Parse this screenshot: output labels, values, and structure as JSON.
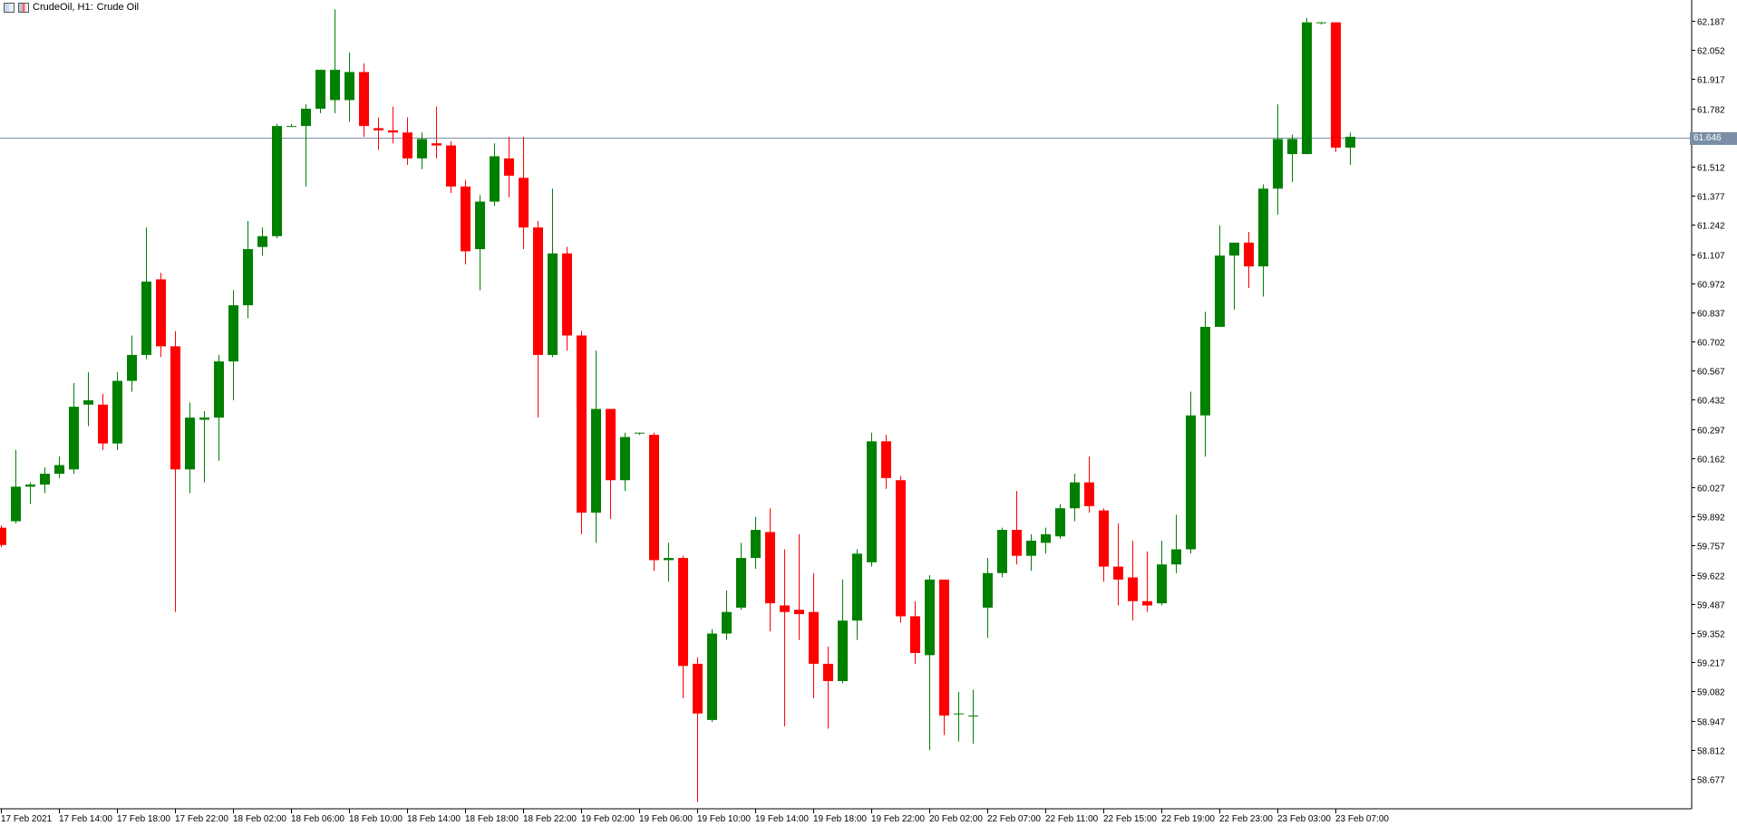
{
  "header": {
    "symbol_label": "CrudeOil, H1:",
    "description": "Crude Oil",
    "icons": [
      "chart-window-icon",
      "chart-type-icon"
    ]
  },
  "colors": {
    "bull": "#008000",
    "bear": "#ff0000",
    "bid_line": "#7a8fa6",
    "price_tag_bg": "#7a8fa6",
    "axis": "#000000"
  },
  "current_price": "61.646",
  "chart_data": {
    "type": "candlestick",
    "title": "",
    "xlabel": "",
    "ylabel": "",
    "ylim": [
      58.58,
      62.24
    ],
    "y_ticks": [
      "62.187",
      "62.052",
      "61.917",
      "61.782",
      "61.646",
      "61.512",
      "61.377",
      "61.242",
      "61.107",
      "60.972",
      "60.837",
      "60.702",
      "60.567",
      "60.432",
      "60.297",
      "60.162",
      "60.027",
      "59.892",
      "59.757",
      "59.622",
      "59.487",
      "59.352",
      "59.217",
      "59.082",
      "58.947",
      "58.812",
      "58.677"
    ],
    "x_tick_labels": [
      "17 Feb 2021",
      "17 Feb 14:00",
      "17 Feb 18:00",
      "17 Feb 22:00",
      "18 Feb 02:00",
      "18 Feb 06:00",
      "18 Feb 10:00",
      "18 Feb 14:00",
      "18 Feb 18:00",
      "18 Feb 22:00",
      "19 Feb 02:00",
      "19 Feb 06:00",
      "19 Feb 10:00",
      "19 Feb 14:00",
      "19 Feb 18:00",
      "19 Feb 22:00",
      "20 Feb 02:00",
      "22 Feb 07:00",
      "22 Feb 11:00",
      "22 Feb 15:00",
      "22 Feb 19:00",
      "22 Feb 23:00",
      "23 Feb 03:00",
      "23 Feb 07:00"
    ],
    "candles": [
      {
        "o": 59.84,
        "h": 59.85,
        "l": 59.75,
        "c": 59.76
      },
      {
        "o": 59.87,
        "h": 60.2,
        "l": 59.86,
        "c": 60.03
      },
      {
        "o": 60.03,
        "h": 60.05,
        "l": 59.95,
        "c": 60.04
      },
      {
        "o": 60.04,
        "h": 60.12,
        "l": 60.0,
        "c": 60.09
      },
      {
        "o": 60.09,
        "h": 60.17,
        "l": 60.07,
        "c": 60.13
      },
      {
        "o": 60.11,
        "h": 60.51,
        "l": 60.09,
        "c": 60.4
      },
      {
        "o": 60.41,
        "h": 60.56,
        "l": 60.31,
        "c": 60.43
      },
      {
        "o": 60.41,
        "h": 60.46,
        "l": 60.2,
        "c": 60.23
      },
      {
        "o": 60.23,
        "h": 60.56,
        "l": 60.2,
        "c": 60.52
      },
      {
        "o": 60.52,
        "h": 60.73,
        "l": 60.47,
        "c": 60.64
      },
      {
        "o": 60.64,
        "h": 61.23,
        "l": 60.62,
        "c": 60.98
      },
      {
        "o": 60.99,
        "h": 61.02,
        "l": 60.63,
        "c": 60.68
      },
      {
        "o": 60.68,
        "h": 60.75,
        "l": 59.45,
        "c": 60.11
      },
      {
        "o": 60.11,
        "h": 60.42,
        "l": 60.0,
        "c": 60.35
      },
      {
        "o": 60.34,
        "h": 60.38,
        "l": 60.05,
        "c": 60.35
      },
      {
        "o": 60.35,
        "h": 60.64,
        "l": 60.15,
        "c": 60.61
      },
      {
        "o": 60.61,
        "h": 60.94,
        "l": 60.43,
        "c": 60.87
      },
      {
        "o": 60.87,
        "h": 61.26,
        "l": 60.81,
        "c": 61.13
      },
      {
        "o": 61.14,
        "h": 61.23,
        "l": 61.1,
        "c": 61.19
      },
      {
        "o": 61.19,
        "h": 61.71,
        "l": 61.18,
        "c": 61.7
      },
      {
        "o": 61.7,
        "h": 61.71,
        "l": 61.7,
        "c": 61.7
      },
      {
        "o": 61.7,
        "h": 61.8,
        "l": 61.42,
        "c": 61.78
      },
      {
        "o": 61.78,
        "h": 61.96,
        "l": 61.76,
        "c": 61.96
      },
      {
        "o": 61.82,
        "h": 62.24,
        "l": 61.76,
        "c": 61.96
      },
      {
        "o": 61.82,
        "h": 62.04,
        "l": 61.72,
        "c": 61.95
      },
      {
        "o": 61.95,
        "h": 61.99,
        "l": 61.65,
        "c": 61.7
      },
      {
        "o": 61.69,
        "h": 61.74,
        "l": 61.59,
        "c": 61.68
      },
      {
        "o": 61.68,
        "h": 61.79,
        "l": 61.62,
        "c": 61.67
      },
      {
        "o": 61.67,
        "h": 61.74,
        "l": 61.52,
        "c": 61.55
      },
      {
        "o": 61.55,
        "h": 61.67,
        "l": 61.5,
        "c": 61.64
      },
      {
        "o": 61.62,
        "h": 61.79,
        "l": 61.55,
        "c": 61.61
      },
      {
        "o": 61.61,
        "h": 61.63,
        "l": 61.39,
        "c": 61.42
      },
      {
        "o": 61.42,
        "h": 61.45,
        "l": 61.06,
        "c": 61.12
      },
      {
        "o": 61.13,
        "h": 61.38,
        "l": 60.94,
        "c": 61.35
      },
      {
        "o": 61.35,
        "h": 61.62,
        "l": 61.33,
        "c": 61.56
      },
      {
        "o": 61.55,
        "h": 61.65,
        "l": 61.37,
        "c": 61.47
      },
      {
        "o": 61.46,
        "h": 61.65,
        "l": 61.13,
        "c": 61.23
      },
      {
        "o": 61.23,
        "h": 61.26,
        "l": 60.35,
        "c": 60.64
      },
      {
        "o": 60.64,
        "h": 61.41,
        "l": 60.63,
        "c": 61.11
      },
      {
        "o": 61.11,
        "h": 61.14,
        "l": 60.66,
        "c": 60.73
      },
      {
        "o": 60.73,
        "h": 60.75,
        "l": 59.81,
        "c": 59.91
      },
      {
        "o": 59.91,
        "h": 60.66,
        "l": 59.77,
        "c": 60.39
      },
      {
        "o": 60.39,
        "h": 60.39,
        "l": 59.88,
        "c": 60.06
      },
      {
        "o": 60.06,
        "h": 60.28,
        "l": 60.01,
        "c": 60.26
      },
      {
        "o": 60.28,
        "h": 60.28,
        "l": 60.27,
        "c": 60.28
      },
      {
        "o": 60.27,
        "h": 60.28,
        "l": 59.64,
        "c": 59.69
      },
      {
        "o": 59.69,
        "h": 59.77,
        "l": 59.59,
        "c": 59.7
      },
      {
        "o": 59.7,
        "h": 59.71,
        "l": 59.05,
        "c": 59.2
      },
      {
        "o": 59.21,
        "h": 59.24,
        "l": 58.57,
        "c": 58.98
      },
      {
        "o": 58.95,
        "h": 59.37,
        "l": 58.94,
        "c": 59.35
      },
      {
        "o": 59.35,
        "h": 59.55,
        "l": 59.32,
        "c": 59.45
      },
      {
        "o": 59.47,
        "h": 59.77,
        "l": 59.46,
        "c": 59.7
      },
      {
        "o": 59.7,
        "h": 59.89,
        "l": 59.65,
        "c": 59.83
      },
      {
        "o": 59.82,
        "h": 59.93,
        "l": 59.36,
        "c": 59.49
      },
      {
        "o": 59.48,
        "h": 59.74,
        "l": 58.92,
        "c": 59.45
      },
      {
        "o": 59.46,
        "h": 59.81,
        "l": 59.32,
        "c": 59.44
      },
      {
        "o": 59.45,
        "h": 59.63,
        "l": 59.05,
        "c": 59.21
      },
      {
        "o": 59.21,
        "h": 59.29,
        "l": 58.91,
        "c": 59.13
      },
      {
        "o": 59.13,
        "h": 59.6,
        "l": 59.12,
        "c": 59.41
      },
      {
        "o": 59.41,
        "h": 59.74,
        "l": 59.32,
        "c": 59.72
      },
      {
        "o": 59.68,
        "h": 60.28,
        "l": 59.66,
        "c": 60.24
      },
      {
        "o": 60.24,
        "h": 60.27,
        "l": 60.02,
        "c": 60.07
      },
      {
        "o": 60.06,
        "h": 60.08,
        "l": 59.4,
        "c": 59.43
      },
      {
        "o": 59.43,
        "h": 59.5,
        "l": 59.21,
        "c": 59.26
      },
      {
        "o": 59.25,
        "h": 59.62,
        "l": 58.81,
        "c": 59.6
      },
      {
        "o": 59.6,
        "h": 59.6,
        "l": 58.88,
        "c": 58.97
      },
      {
        "o": 58.98,
        "h": 59.08,
        "l": 58.85,
        "c": 58.98
      },
      {
        "o": 58.97,
        "h": 59.09,
        "l": 58.84,
        "c": 58.97
      },
      {
        "o": 59.47,
        "h": 59.7,
        "l": 59.33,
        "c": 59.63
      },
      {
        "o": 59.63,
        "h": 59.84,
        "l": 59.61,
        "c": 59.83
      },
      {
        "o": 59.83,
        "h": 60.01,
        "l": 59.67,
        "c": 59.71
      },
      {
        "o": 59.71,
        "h": 59.81,
        "l": 59.64,
        "c": 59.78
      },
      {
        "o": 59.77,
        "h": 59.84,
        "l": 59.72,
        "c": 59.81
      },
      {
        "o": 59.8,
        "h": 59.95,
        "l": 59.79,
        "c": 59.93
      },
      {
        "o": 59.93,
        "h": 60.09,
        "l": 59.87,
        "c": 60.05
      },
      {
        "o": 60.05,
        "h": 60.17,
        "l": 59.91,
        "c": 59.94
      },
      {
        "o": 59.92,
        "h": 59.93,
        "l": 59.59,
        "c": 59.66
      },
      {
        "o": 59.66,
        "h": 59.86,
        "l": 59.48,
        "c": 59.6
      },
      {
        "o": 59.61,
        "h": 59.78,
        "l": 59.41,
        "c": 59.5
      },
      {
        "o": 59.5,
        "h": 59.73,
        "l": 59.45,
        "c": 59.48
      },
      {
        "o": 59.49,
        "h": 59.78,
        "l": 59.48,
        "c": 59.67
      },
      {
        "o": 59.67,
        "h": 59.9,
        "l": 59.63,
        "c": 59.74
      },
      {
        "o": 59.74,
        "h": 60.47,
        "l": 59.72,
        "c": 60.36
      },
      {
        "o": 60.36,
        "h": 60.84,
        "l": 60.17,
        "c": 60.77
      },
      {
        "o": 60.77,
        "h": 61.24,
        "l": 60.77,
        "c": 61.1
      },
      {
        "o": 61.1,
        "h": 61.16,
        "l": 60.85,
        "c": 61.16
      },
      {
        "o": 61.16,
        "h": 61.21,
        "l": 60.95,
        "c": 61.05
      },
      {
        "o": 61.05,
        "h": 61.43,
        "l": 60.91,
        "c": 61.41
      },
      {
        "o": 61.41,
        "h": 61.8,
        "l": 61.29,
        "c": 61.64
      },
      {
        "o": 61.57,
        "h": 61.66,
        "l": 61.44,
        "c": 61.64
      },
      {
        "o": 61.57,
        "h": 62.2,
        "l": 61.57,
        "c": 62.18
      },
      {
        "o": 62.18,
        "h": 62.18,
        "l": 62.17,
        "c": 62.18
      },
      {
        "o": 62.18,
        "h": 62.18,
        "l": 61.58,
        "c": 61.6
      },
      {
        "o": 61.6,
        "h": 61.67,
        "l": 61.52,
        "c": 61.65
      }
    ]
  }
}
